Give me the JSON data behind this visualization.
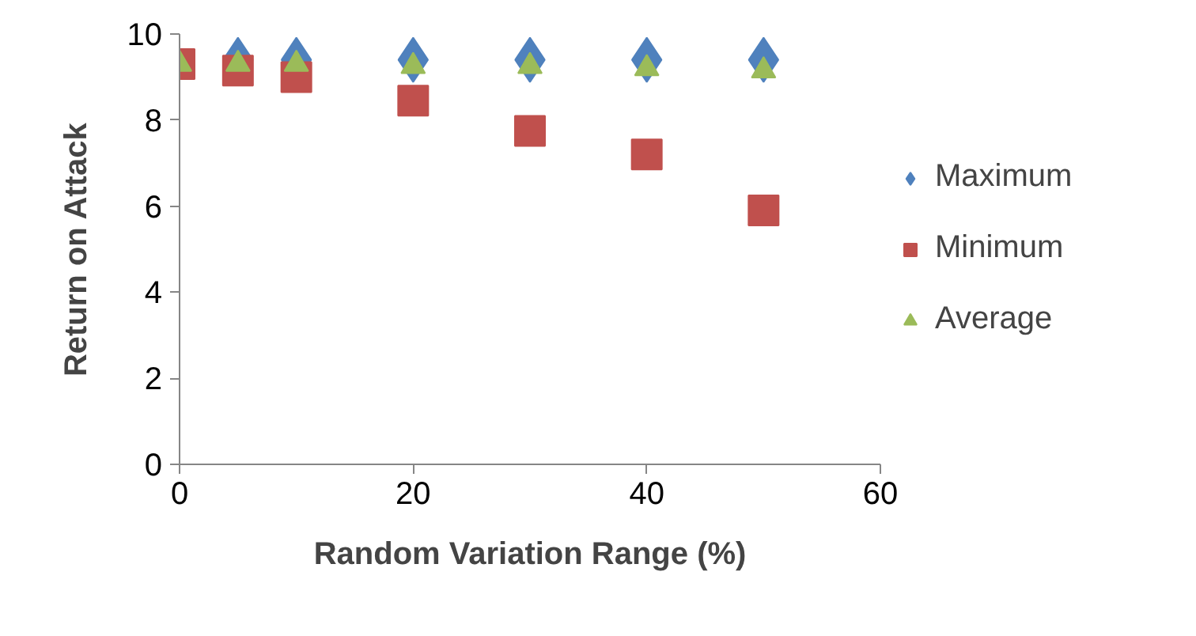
{
  "chart_data": {
    "type": "scatter",
    "xlabel": "Random Variation Range (%)",
    "ylabel": "Return on Attack",
    "x": [
      0,
      5,
      10,
      20,
      30,
      40,
      50
    ],
    "series": [
      {
        "name": "Maximum",
        "color": "#4f81bd",
        "marker": "diamond",
        "values": [
          null,
          9.4,
          9.4,
          9.4,
          9.4,
          9.4,
          9.4
        ]
      },
      {
        "name": "Minimum",
        "color": "#c0504d",
        "marker": "square",
        "values": [
          9.3,
          9.15,
          9.0,
          8.45,
          7.75,
          7.2,
          5.9
        ]
      },
      {
        "name": "Average",
        "color": "#9bbb59",
        "marker": "triangle",
        "values": [
          9.3,
          9.3,
          9.3,
          9.25,
          9.25,
          9.2,
          9.15
        ]
      }
    ],
    "xlim": [
      0,
      60
    ],
    "xticks": [
      0,
      20,
      40,
      60
    ],
    "ylim": [
      0,
      10
    ],
    "yticks": [
      0,
      2,
      4,
      6,
      8,
      10
    ],
    "grid": false,
    "legend": "right"
  }
}
